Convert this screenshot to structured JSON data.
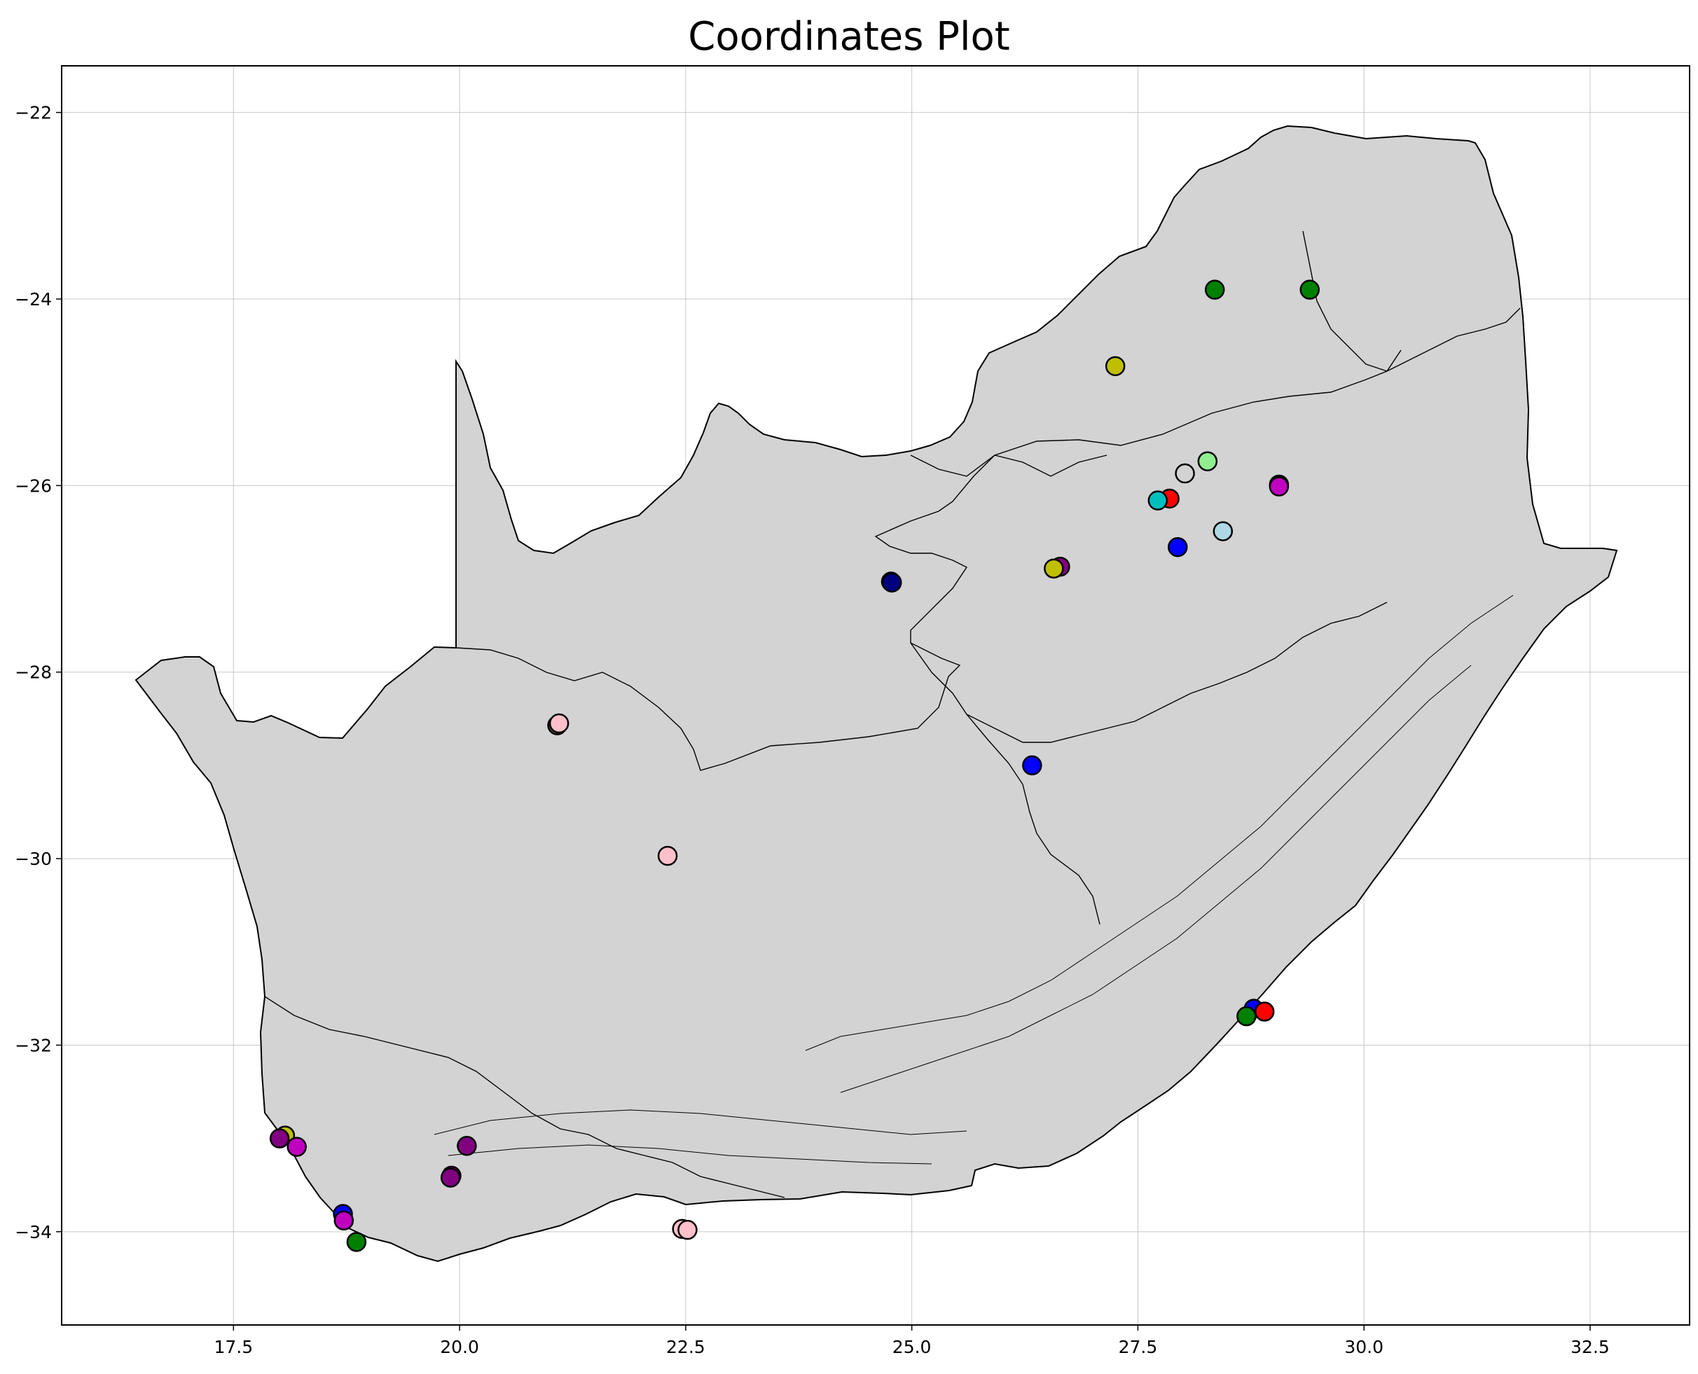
{
  "title": "Coordinates Plot",
  "chart_data": {
    "type": "scatter",
    "title": "Coordinates Plot",
    "xlabel": "",
    "ylabel": "",
    "xlim": [
      15.6,
      33.6
    ],
    "ylim": [
      -35.0,
      -21.5
    ],
    "grid": true,
    "xticks": [
      17.5,
      20.0,
      22.5,
      25.0,
      27.5,
      30.0,
      32.5
    ],
    "yticks": [
      -22,
      -24,
      -26,
      -28,
      -30,
      -32,
      -34
    ],
    "xtick_labels": [
      "17.5",
      "20.0",
      "22.5",
      "25.0",
      "27.5",
      "30.0",
      "32.5"
    ],
    "ytick_labels": [
      "−22",
      "−24",
      "−26",
      "−28",
      "−30",
      "−32",
      "−34"
    ],
    "basemap": "South Africa outline with provincial boundaries (light grey fill, black outline)",
    "points": [
      {
        "x": 28.35,
        "y": -23.9,
        "color": "#008000"
      },
      {
        "x": 29.4,
        "y": -23.9,
        "color": "#008000"
      },
      {
        "x": 27.25,
        "y": -24.72,
        "color": "#bfbf00"
      },
      {
        "x": 28.27,
        "y": -25.74,
        "color": "#90ee90"
      },
      {
        "x": 28.02,
        "y": -25.87,
        "color": "#d3d3d3"
      },
      {
        "x": 29.06,
        "y": -25.99,
        "color": "#800080"
      },
      {
        "x": 29.06,
        "y": -26.01,
        "color": "#bf00bf"
      },
      {
        "x": 27.85,
        "y": -26.14,
        "color": "#ff0000"
      },
      {
        "x": 27.72,
        "y": -26.16,
        "color": "#00bfbf"
      },
      {
        "x": 28.44,
        "y": -26.49,
        "color": "#add8e6"
      },
      {
        "x": 27.94,
        "y": -26.66,
        "color": "#0000ff"
      },
      {
        "x": 26.64,
        "y": -26.87,
        "color": "#800080"
      },
      {
        "x": 26.57,
        "y": -26.89,
        "color": "#bfbf00"
      },
      {
        "x": 24.77,
        "y": -27.03,
        "color": "#00008b"
      },
      {
        "x": 24.78,
        "y": -27.04,
        "color": "#000080"
      },
      {
        "x": 21.08,
        "y": -28.57,
        "color": "#555555"
      },
      {
        "x": 21.1,
        "y": -28.55,
        "color": "#ffc0cb"
      },
      {
        "x": 26.33,
        "y": -29.0,
        "color": "#0000ff"
      },
      {
        "x": 22.3,
        "y": -29.97,
        "color": "#ffc0cb"
      },
      {
        "x": 28.78,
        "y": -31.61,
        "color": "#0000ff"
      },
      {
        "x": 28.7,
        "y": -31.69,
        "color": "#008000"
      },
      {
        "x": 28.9,
        "y": -31.64,
        "color": "#ff0000"
      },
      {
        "x": 18.07,
        "y": -32.97,
        "color": "#bfbf00"
      },
      {
        "x": 18.01,
        "y": -33.0,
        "color": "#800080"
      },
      {
        "x": 18.2,
        "y": -33.09,
        "color": "#bf00bf"
      },
      {
        "x": 20.08,
        "y": -33.08,
        "color": "#800080"
      },
      {
        "x": 19.91,
        "y": -33.4,
        "color": "#bf00bf"
      },
      {
        "x": 19.9,
        "y": -33.42,
        "color": "#800080"
      },
      {
        "x": 18.71,
        "y": -33.81,
        "color": "#0000ff"
      },
      {
        "x": 18.72,
        "y": -33.88,
        "color": "#bf00bf"
      },
      {
        "x": 18.86,
        "y": -34.11,
        "color": "#008000"
      },
      {
        "x": 22.46,
        "y": -33.97,
        "color": "#ffc0cb"
      },
      {
        "x": 22.52,
        "y": -33.98,
        "color": "#ffc0cb"
      }
    ]
  },
  "colors": {
    "land_fill": "#d3d3d3",
    "outline": "#000000",
    "grid": "#b0b0b0"
  }
}
